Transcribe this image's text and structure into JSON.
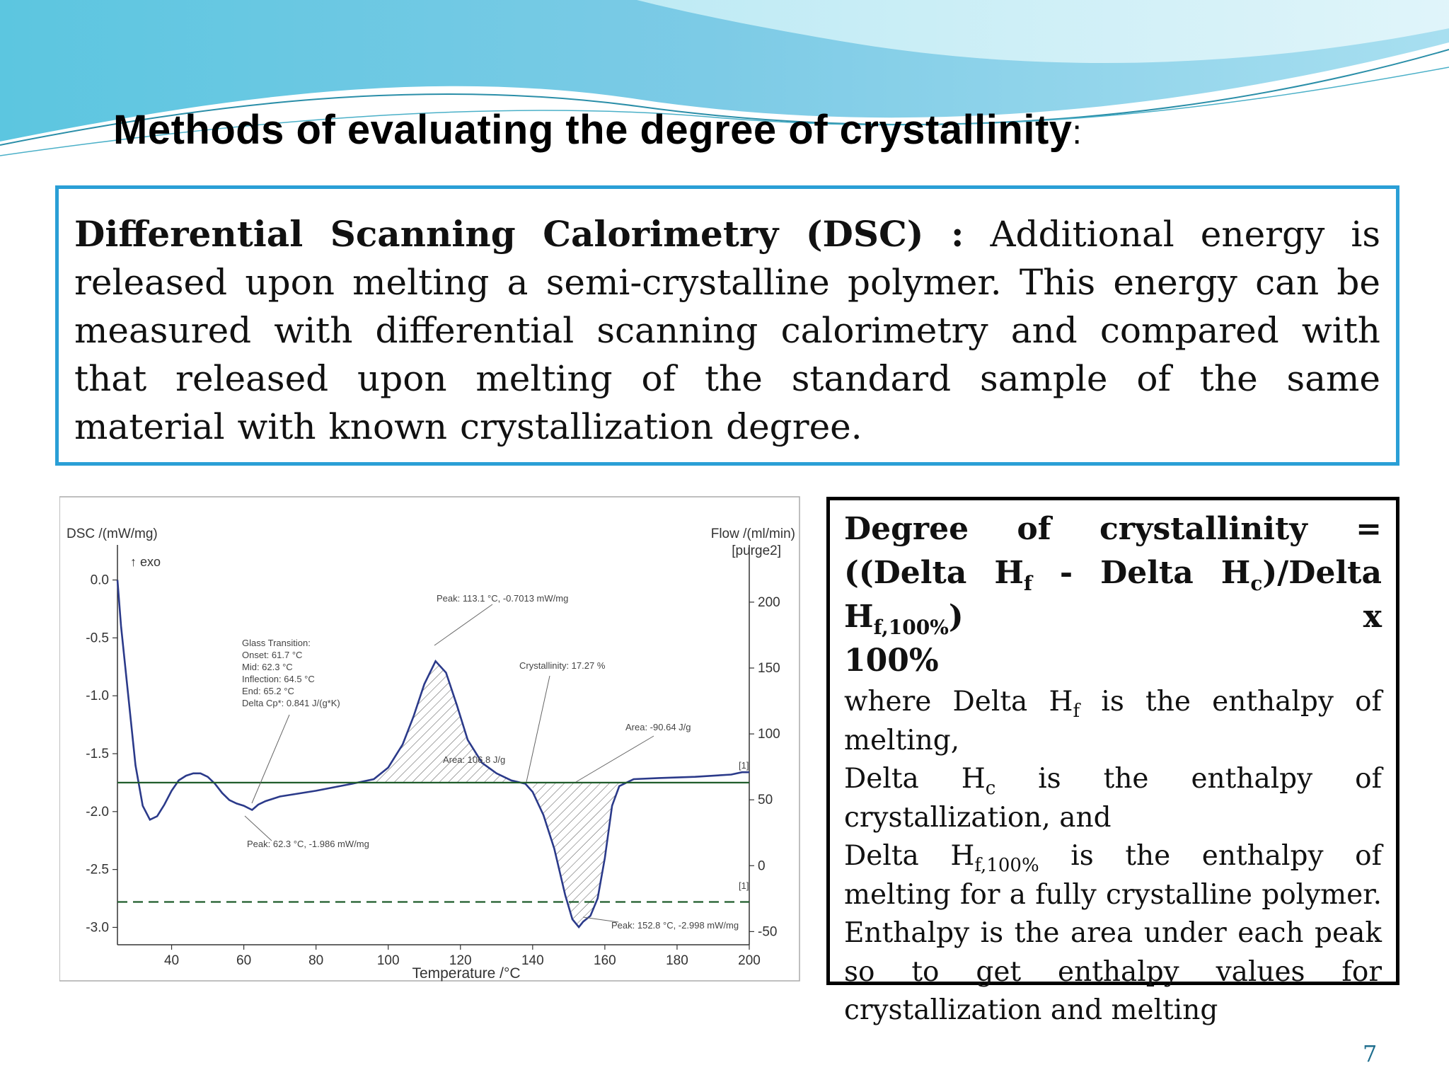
{
  "slide": {
    "title": "Methods of evaluating the degree of crystallinity",
    "title_colon": ":",
    "page_number": "7",
    "accent_color": "#2a9fd6"
  },
  "dsc": {
    "term": "Differential Scanning Calorimetry (DSC) :",
    "text": "Additional energy is released upon melting a semi-crystalline polymer. This energy can be measured with differential scanning calorimetry and compared with that released upon melting of the standard sample of the same material with known crystallization degree."
  },
  "formula": {
    "lhs": "Degree of crystallinity = ((Delta",
    "hf": "H",
    "hf_sub": "f",
    "minus": " - Delta ",
    "hc": "H",
    "hc_sub": "c",
    "div": ")/Delta ",
    "hf100": "H",
    "hf100_sub": "f,100%",
    "times": ") x",
    "pct": "100%",
    "where1": "where Delta H",
    "where1_sub": "f",
    "where1_end": " is the enthalpy of",
    "where1_line2": "melting,",
    "where2a": "Delta",
    "where2_h": "H",
    "where2_sub": "c",
    "where2b": "is",
    "where2c": "the",
    "where2d": "enthalpy",
    "where2e": "of",
    "where2_line2": "crystallization, and",
    "where3": "Delta H",
    "where3_sub": "f,100%",
    "where3_end": " is the enthalpy of melting for a fully crystalline polymer. Enthalpy is the area under each peak so to get enthalpy values for crystallization and melting"
  },
  "chart_data": {
    "type": "line",
    "ylabel": "DSC /(mW/mg)",
    "y2label": "Flow /(ml/min)",
    "y2label_sub": "[purge2]",
    "xlabel": "Temperature /°C",
    "exo_label": "↑ exo",
    "xlim": [
      25,
      200
    ],
    "ylim": [
      -3.15,
      0.15
    ],
    "y2lim": [
      -60,
      230
    ],
    "x_ticks": [
      "40",
      "60",
      "80",
      "100",
      "120",
      "140",
      "160",
      "180",
      "200"
    ],
    "y_ticks": [
      "0.0",
      "-0.5",
      "-1.0",
      "-1.5",
      "-2.0",
      "-2.5",
      "-3.0"
    ],
    "y2_ticks": [
      "200",
      "150",
      "100",
      "50",
      "0",
      "-50"
    ],
    "series": [
      {
        "name": "",
        "color": "#2b3a8a",
        "x": [
          25,
          26,
          28,
          30,
          32,
          34,
          36,
          38,
          40,
          42,
          44,
          46,
          48,
          50,
          52,
          54,
          56,
          58,
          60,
          62.3,
          64,
          66,
          70,
          80,
          90,
          96,
          100,
          104,
          107,
          110,
          113.1,
          116,
          119,
          122,
          126,
          130,
          134,
          138,
          140,
          143,
          146,
          149,
          151,
          152.8,
          154,
          156,
          158,
          160,
          162,
          164,
          168,
          175,
          185,
          195,
          198,
          200
        ],
        "y": [
          0.0,
          -0.4,
          -1.0,
          -1.6,
          -1.95,
          -2.07,
          -2.04,
          -1.94,
          -1.82,
          -1.73,
          -1.69,
          -1.67,
          -1.67,
          -1.7,
          -1.76,
          -1.84,
          -1.9,
          -1.93,
          -1.95,
          -1.986,
          -1.94,
          -1.91,
          -1.87,
          -1.82,
          -1.76,
          -1.72,
          -1.62,
          -1.42,
          -1.18,
          -0.9,
          -0.701,
          -0.8,
          -1.08,
          -1.38,
          -1.58,
          -1.67,
          -1.73,
          -1.76,
          -1.83,
          -2.03,
          -2.32,
          -2.72,
          -2.93,
          -2.998,
          -2.95,
          -2.9,
          -2.75,
          -2.4,
          -1.95,
          -1.78,
          -1.72,
          -1.71,
          -1.7,
          -1.68,
          -1.66,
          -1.66
        ]
      },
      {
        "name": "",
        "color": "#1f5c2a",
        "style": "solid",
        "x": [
          25,
          200
        ],
        "y": [
          -1.75,
          -1.75
        ]
      },
      {
        "name": "",
        "color": "#1f5c2a",
        "style": "dashed",
        "x": [
          25,
          200
        ],
        "y": [
          -2.78,
          -2.78
        ]
      }
    ],
    "annotations": {
      "glass_transition": [
        "Glass Transition:",
        "Onset:     61.7 °C",
        "Mid:         62.3 °C",
        "Inflection:  64.5 °C",
        "End:         65.2 °C",
        "Delta Cp*:   0.841 J/(g*K)"
      ],
      "peak1": "Peak: 113.1 °C, -0.7013 mW/mg",
      "area1": "Area: 106.8 J/g",
      "crystallinity": "Crystallinity: 17.27 %",
      "area2": "Area: -90.64 J/g",
      "peak_gt": "Peak: 62.3 °C, -1.986 mW/mg",
      "peak2": "Peak: 152.8 °C, -2.998 mW/mg",
      "marker1": "[1]",
      "marker2": "[1]"
    }
  }
}
